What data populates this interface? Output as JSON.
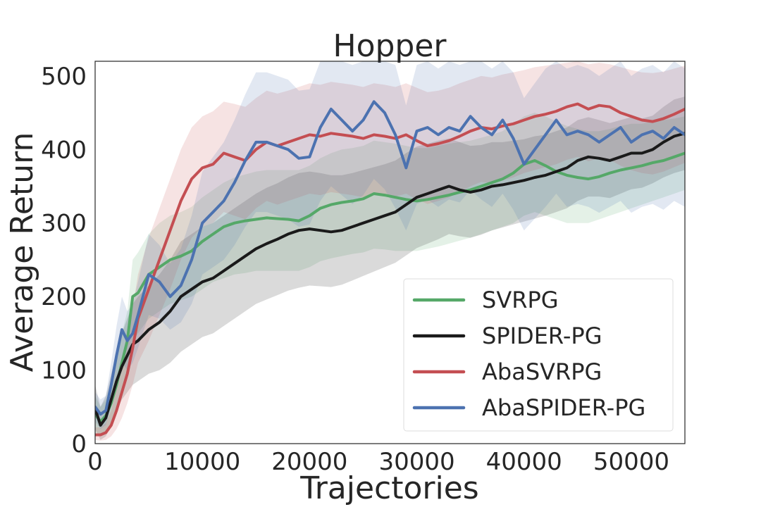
{
  "chart_data": {
    "type": "line",
    "title": "Hopper",
    "xlabel": "Trajectories",
    "ylabel": "Average Return",
    "xlim": [
      0,
      55000
    ],
    "ylim": [
      0,
      520
    ],
    "xticks": [
      0,
      10000,
      20000,
      30000,
      40000,
      50000
    ],
    "xtick_labels": [
      "0",
      "10000",
      "20000",
      "30000",
      "40000",
      "50000"
    ],
    "yticks": [
      0,
      100,
      200,
      300,
      400,
      500
    ],
    "ytick_labels": [
      "0",
      "100",
      "200",
      "300",
      "400",
      "500"
    ],
    "grid": false,
    "legend_position": "lower-right",
    "series": [
      {
        "name": "SVRPG",
        "color": "#55a868",
        "x": [
          0,
          500,
          1000,
          1500,
          2000,
          2500,
          3000,
          3500,
          4000,
          5000,
          6000,
          7000,
          8000,
          9000,
          10000,
          11000,
          12000,
          13000,
          14000,
          15000,
          16000,
          17000,
          18000,
          19000,
          20000,
          21000,
          22000,
          23000,
          24000,
          25000,
          26000,
          27000,
          28000,
          29000,
          30000,
          31000,
          32000,
          33000,
          34000,
          35000,
          36000,
          37000,
          38000,
          39000,
          40000,
          41000,
          42000,
          43000,
          44000,
          45000,
          46000,
          47000,
          48000,
          49000,
          50000,
          51000,
          52000,
          53000,
          54000,
          55000
        ],
        "y": [
          40,
          30,
          38,
          55,
          80,
          110,
          140,
          200,
          205,
          230,
          240,
          250,
          255,
          262,
          275,
          285,
          295,
          300,
          303,
          305,
          307,
          306,
          305,
          303,
          310,
          320,
          325,
          328,
          330,
          333,
          340,
          338,
          335,
          332,
          330,
          332,
          335,
          338,
          342,
          345,
          350,
          355,
          360,
          368,
          380,
          385,
          378,
          370,
          365,
          362,
          360,
          363,
          368,
          372,
          375,
          378,
          382,
          385,
          390,
          395
        ],
        "lower": [
          15,
          10,
          15,
          25,
          45,
          70,
          100,
          140,
          150,
          170,
          180,
          190,
          195,
          200,
          210,
          220,
          225,
          230,
          232,
          235,
          235,
          235,
          235,
          235,
          240,
          248,
          252,
          255,
          258,
          260,
          265,
          264,
          262,
          262,
          262,
          265,
          268,
          272,
          276,
          280,
          285,
          290,
          295,
          300,
          310,
          315,
          310,
          305,
          300,
          300,
          300,
          305,
          310,
          315,
          320,
          325,
          330,
          335,
          340,
          345
        ],
        "upper": [
          65,
          50,
          60,
          85,
          115,
          150,
          180,
          250,
          260,
          285,
          300,
          310,
          315,
          322,
          335,
          345,
          355,
          362,
          366,
          370,
          372,
          372,
          372,
          372,
          378,
          388,
          395,
          400,
          402,
          405,
          412,
          410,
          408,
          405,
          402,
          402,
          405,
          408,
          410,
          412,
          416,
          420,
          425,
          435,
          445,
          450,
          445,
          438,
          432,
          428,
          425,
          425,
          428,
          432,
          435,
          435,
          438,
          440,
          442,
          445
        ]
      },
      {
        "name": "SPIDER-PG",
        "color": "#1a1a1a",
        "x": [
          0,
          500,
          1000,
          1500,
          2000,
          2500,
          3000,
          3500,
          4000,
          5000,
          6000,
          7000,
          8000,
          9000,
          10000,
          11000,
          12000,
          13000,
          14000,
          15000,
          16000,
          17000,
          18000,
          19000,
          20000,
          21000,
          22000,
          23000,
          24000,
          25000,
          26000,
          27000,
          28000,
          29000,
          30000,
          31000,
          32000,
          33000,
          34000,
          35000,
          36000,
          37000,
          38000,
          39000,
          40000,
          41000,
          42000,
          43000,
          44000,
          45000,
          46000,
          47000,
          48000,
          49000,
          50000,
          51000,
          52000,
          53000,
          54000,
          55000
        ],
        "y": [
          48,
          25,
          35,
          60,
          85,
          105,
          120,
          135,
          140,
          155,
          165,
          180,
          200,
          210,
          220,
          225,
          235,
          245,
          255,
          265,
          272,
          278,
          285,
          290,
          292,
          290,
          288,
          290,
          295,
          300,
          305,
          310,
          315,
          325,
          335,
          340,
          345,
          350,
          345,
          342,
          345,
          350,
          352,
          355,
          358,
          362,
          365,
          370,
          375,
          385,
          390,
          388,
          385,
          390,
          395,
          395,
          400,
          410,
          418,
          422
        ],
        "lower": [
          20,
          5,
          10,
          25,
          45,
          60,
          70,
          80,
          85,
          95,
          100,
          110,
          125,
          135,
          145,
          150,
          160,
          170,
          180,
          190,
          196,
          202,
          208,
          212,
          215,
          214,
          213,
          216,
          222,
          228,
          234,
          240,
          246,
          256,
          266,
          272,
          278,
          285,
          282,
          280,
          284,
          290,
          294,
          298,
          302,
          306,
          310,
          315,
          320,
          330,
          336,
          336,
          334,
          340,
          346,
          348,
          354,
          362,
          368,
          372
        ],
        "upper": [
          80,
          50,
          65,
          95,
          125,
          150,
          170,
          190,
          200,
          215,
          230,
          250,
          275,
          285,
          295,
          300,
          310,
          320,
          330,
          340,
          348,
          354,
          362,
          368,
          370,
          368,
          365,
          365,
          368,
          372,
          376,
          380,
          385,
          395,
          404,
          408,
          412,
          415,
          410,
          405,
          406,
          410,
          410,
          412,
          414,
          418,
          420,
          425,
          430,
          440,
          444,
          440,
          436,
          440,
          444,
          442,
          446,
          458,
          468,
          472
        ]
      },
      {
        "name": "AbaSVRPG",
        "color": "#c44e52",
        "x": [
          0,
          500,
          1000,
          1500,
          2000,
          2500,
          3000,
          3500,
          4000,
          5000,
          6000,
          7000,
          8000,
          9000,
          10000,
          11000,
          12000,
          13000,
          14000,
          15000,
          16000,
          17000,
          18000,
          19000,
          20000,
          21000,
          22000,
          23000,
          24000,
          25000,
          26000,
          27000,
          28000,
          29000,
          30000,
          31000,
          32000,
          33000,
          34000,
          35000,
          36000,
          37000,
          38000,
          39000,
          40000,
          41000,
          42000,
          43000,
          44000,
          45000,
          46000,
          47000,
          48000,
          49000,
          50000,
          51000,
          52000,
          53000,
          54000,
          55000
        ],
        "y": [
          12,
          12,
          15,
          25,
          45,
          70,
          95,
          130,
          170,
          210,
          250,
          290,
          330,
          360,
          375,
          380,
          395,
          390,
          385,
          400,
          410,
          405,
          410,
          415,
          420,
          418,
          422,
          420,
          418,
          415,
          420,
          418,
          415,
          420,
          412,
          405,
          408,
          412,
          418,
          425,
          430,
          428,
          432,
          435,
          440,
          445,
          448,
          452,
          458,
          462,
          455,
          460,
          458,
          450,
          445,
          440,
          438,
          442,
          448,
          455
        ],
        "lower": [
          5,
          4,
          5,
          10,
          20,
          35,
          55,
          80,
          110,
          140,
          175,
          210,
          250,
          280,
          295,
          300,
          315,
          310,
          305,
          320,
          330,
          325,
          330,
          335,
          340,
          338,
          342,
          340,
          338,
          335,
          340,
          338,
          336,
          340,
          332,
          326,
          330,
          335,
          342,
          350,
          356,
          354,
          358,
          362,
          368,
          372,
          376,
          380,
          386,
          390,
          384,
          388,
          386,
          378,
          372,
          368,
          366,
          370,
          376,
          382
        ],
        "upper": [
          22,
          22,
          28,
          45,
          75,
          110,
          140,
          185,
          230,
          280,
          320,
          360,
          400,
          430,
          445,
          452,
          465,
          462,
          458,
          470,
          480,
          476,
          480,
          485,
          490,
          488,
          492,
          490,
          488,
          485,
          490,
          488,
          485,
          490,
          484,
          478,
          480,
          484,
          490,
          495,
          500,
          498,
          502,
          505,
          508,
          512,
          514,
          516,
          518,
          520,
          516,
          518,
          516,
          512,
          508,
          505,
          504,
          506,
          510,
          514
        ]
      },
      {
        "name": "AbaSPIDER-PG",
        "color": "#4c72b0",
        "x": [
          0,
          500,
          1000,
          1500,
          2000,
          2500,
          3000,
          3500,
          4000,
          5000,
          6000,
          7000,
          8000,
          9000,
          10000,
          11000,
          12000,
          13000,
          14000,
          15000,
          16000,
          17000,
          18000,
          19000,
          20000,
          21000,
          22000,
          23000,
          24000,
          25000,
          26000,
          27000,
          28000,
          29000,
          30000,
          31000,
          32000,
          33000,
          34000,
          35000,
          36000,
          37000,
          38000,
          39000,
          40000,
          41000,
          42000,
          43000,
          44000,
          45000,
          46000,
          47000,
          48000,
          49000,
          50000,
          51000,
          52000,
          53000,
          54000,
          55000
        ],
        "y": [
          50,
          40,
          45,
          80,
          120,
          155,
          140,
          150,
          175,
          230,
          220,
          200,
          215,
          250,
          300,
          315,
          330,
          355,
          385,
          410,
          410,
          405,
          400,
          388,
          390,
          430,
          455,
          440,
          425,
          440,
          465,
          450,
          420,
          375,
          425,
          430,
          420,
          430,
          425,
          445,
          430,
          420,
          440,
          415,
          380,
          400,
          420,
          440,
          420,
          425,
          420,
          410,
          420,
          430,
          410,
          420,
          425,
          415,
          430,
          420
        ],
        "lower": [
          30,
          20,
          25,
          50,
          80,
          110,
          100,
          110,
          130,
          175,
          170,
          155,
          165,
          190,
          230,
          240,
          250,
          270,
          295,
          315,
          315,
          310,
          305,
          295,
          298,
          330,
          350,
          338,
          326,
          338,
          360,
          346,
          320,
          290,
          326,
          332,
          322,
          332,
          328,
          345,
          332,
          322,
          340,
          318,
          290,
          306,
          322,
          340,
          322,
          326,
          322,
          314,
          322,
          330,
          314,
          322,
          326,
          318,
          330,
          322
        ],
        "upper": [
          70,
          60,
          65,
          110,
          160,
          200,
          180,
          190,
          220,
          285,
          270,
          245,
          265,
          310,
          370,
          390,
          410,
          440,
          475,
          505,
          505,
          500,
          495,
          480,
          482,
          520,
          520,
          520,
          515,
          520,
          520,
          520,
          515,
          460,
          515,
          520,
          510,
          520,
          515,
          520,
          520,
          510,
          520,
          505,
          470,
          490,
          510,
          520,
          510,
          515,
          510,
          500,
          510,
          520,
          500,
          510,
          515,
          505,
          520,
          510
        ]
      }
    ]
  }
}
